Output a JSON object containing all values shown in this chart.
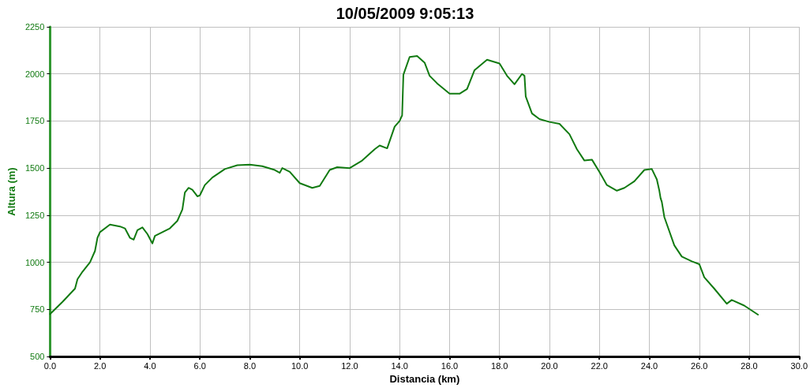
{
  "chart_data": {
    "type": "line",
    "title": "10/05/2009 9:05:13",
    "xlabel": "Distancia (km)",
    "ylabel": "Altura (m)",
    "x": [
      0,
      0.5,
      1.0,
      1.1,
      1.3,
      1.6,
      1.8,
      1.9,
      2.0,
      2.4,
      2.8,
      3.0,
      3.2,
      3.35,
      3.5,
      3.7,
      3.9,
      4.1,
      4.2,
      4.5,
      4.8,
      5.1,
      5.3,
      5.4,
      5.55,
      5.7,
      5.9,
      6.0,
      6.2,
      6.5,
      7.0,
      7.5,
      8.0,
      8.5,
      9.0,
      9.2,
      9.3,
      9.6,
      10.0,
      10.5,
      10.8,
      11.2,
      11.5,
      12.0,
      12.5,
      13.0,
      13.2,
      13.5,
      13.8,
      14.0,
      14.1,
      14.15,
      14.4,
      14.7,
      15.0,
      15.2,
      15.5,
      16.0,
      16.4,
      16.7,
      17.0,
      17.5,
      18.0,
      18.3,
      18.6,
      18.9,
      19.0,
      19.05,
      19.3,
      19.6,
      20.0,
      20.4,
      20.8,
      21.1,
      21.4,
      21.7,
      22.0,
      22.3,
      22.7,
      23.0,
      23.4,
      23.8,
      24.1,
      24.3,
      24.4,
      24.45,
      24.5,
      24.6,
      25.0,
      25.3,
      25.7,
      26.0,
      26.2,
      26.6,
      27.1,
      27.3,
      27.8,
      28.35
    ],
    "series": [
      {
        "color": "#117a11",
        "values": [
          725,
          790,
          860,
          910,
          950,
          1000,
          1060,
          1130,
          1160,
          1200,
          1190,
          1180,
          1130,
          1120,
          1170,
          1185,
          1150,
          1100,
          1140,
          1160,
          1180,
          1220,
          1280,
          1370,
          1395,
          1385,
          1350,
          1355,
          1410,
          1450,
          1495,
          1515,
          1518,
          1510,
          1490,
          1475,
          1500,
          1480,
          1420,
          1395,
          1405,
          1490,
          1505,
          1500,
          1540,
          1600,
          1620,
          1605,
          1720,
          1750,
          1780,
          1995,
          2090,
          2095,
          2060,
          1990,
          1950,
          1895,
          1895,
          1920,
          2020,
          2075,
          2055,
          1990,
          1945,
          2000,
          1990,
          1880,
          1790,
          1760,
          1745,
          1735,
          1680,
          1600,
          1540,
          1545,
          1480,
          1410,
          1380,
          1395,
          1430,
          1490,
          1495,
          1440,
          1380,
          1340,
          1320,
          1240,
          1090,
          1030,
          1005,
          990,
          920,
          860,
          780,
          800,
          770,
          722
        ]
      }
    ],
    "xlim": [
      0,
      30
    ],
    "xticks": [
      {
        "value": 0,
        "label": "0.0"
      },
      {
        "value": 2,
        "label": "2.0"
      },
      {
        "value": 4,
        "label": "4.0"
      },
      {
        "value": 6,
        "label": "6.0"
      },
      {
        "value": 8,
        "label": "8.0"
      },
      {
        "value": 10,
        "label": "10.0"
      },
      {
        "value": 12,
        "label": "12.0"
      },
      {
        "value": 14,
        "label": "14.0"
      },
      {
        "value": 16,
        "label": "16.0"
      },
      {
        "value": 18,
        "label": "18.0"
      },
      {
        "value": 20,
        "label": "20.0"
      },
      {
        "value": 22,
        "label": "22.0"
      },
      {
        "value": 24,
        "label": "24.0"
      },
      {
        "value": 26,
        "label": "26.0"
      },
      {
        "value": 28,
        "label": "28.0"
      },
      {
        "value": 30,
        "label": "30.0"
      }
    ],
    "ylim": [
      500,
      2250
    ],
    "yticks": [
      500,
      750,
      1000,
      1250,
      1500,
      1750,
      2000,
      2250
    ],
    "grid": true,
    "marker": "none",
    "line_style": "solid"
  }
}
